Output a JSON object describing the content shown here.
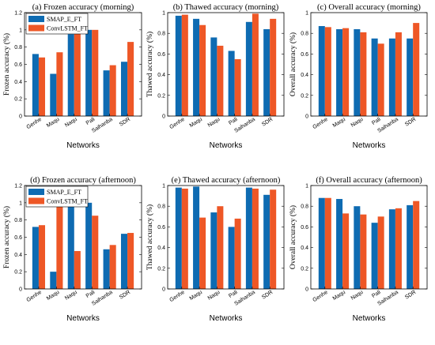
{
  "colors": {
    "blue": "#0e6bb2",
    "orange": "#ee5726"
  },
  "chart_data": [
    {
      "type": "bar",
      "title": "(a) Frozen accuracy (morning)",
      "xlabel": "Networks",
      "ylabel": "Frozen accuracy (%)",
      "ylim": [
        0,
        1.2
      ],
      "yticks": [
        "0",
        "0.2",
        "0.4",
        "0.6",
        "0.8",
        "1",
        "1.2"
      ],
      "legend": "top-left",
      "categories": [
        "Genhe",
        "Maqu",
        "Naqu",
        "Pali",
        "Saihanba",
        "SDR"
      ],
      "series": [
        {
          "name": "SMAP_E_FT",
          "color": "#0e6bb2",
          "values": [
            0.72,
            0.49,
            0.95,
            1.0,
            0.53,
            0.63
          ]
        },
        {
          "name": "ConvLSTM_FT",
          "color": "#ee5726",
          "values": [
            0.68,
            0.74,
            0.98,
            1.0,
            0.59,
            0.86
          ]
        }
      ]
    },
    {
      "type": "bar",
      "title": "(b) Thawed accuracy (morning)",
      "xlabel": "Networks",
      "ylabel": "Thawed accuracy (%)",
      "ylim": [
        0,
        1
      ],
      "yticks": [
        "0",
        "0.2",
        "0.4",
        "0.6",
        "0.8",
        "1"
      ],
      "categories": [
        "Genhe",
        "Maqu",
        "Naqu",
        "Pali",
        "Saihanba",
        "SDR"
      ],
      "series": [
        {
          "color": "#0e6bb2",
          "values": [
            0.97,
            0.94,
            0.76,
            0.63,
            0.91,
            0.84
          ]
        },
        {
          "color": "#ee5726",
          "values": [
            0.98,
            0.88,
            0.68,
            0.55,
            0.99,
            0.94
          ]
        }
      ]
    },
    {
      "type": "bar",
      "title": "(c) Overall accuracy (morning)",
      "xlabel": "Networks",
      "ylabel": "Overall accuracy (%)",
      "ylim": [
        0,
        1
      ],
      "yticks": [
        "0",
        "0.2",
        "0.4",
        "0.6",
        "0.8",
        "1"
      ],
      "categories": [
        "Genhe",
        "Maqu",
        "Naqu",
        "Pali",
        "Saihanba",
        "SDR"
      ],
      "series": [
        {
          "color": "#0e6bb2",
          "values": [
            0.87,
            0.84,
            0.84,
            0.75,
            0.75,
            0.75
          ]
        },
        {
          "color": "#ee5726",
          "values": [
            0.86,
            0.85,
            0.81,
            0.7,
            0.81,
            0.9
          ]
        }
      ]
    },
    {
      "type": "bar",
      "title": "(d) Frozen accuracy (afternoon)",
      "xlabel": "Networks",
      "ylabel": "Frozen accuracy (%)",
      "ylim": [
        0,
        1.2
      ],
      "yticks": [
        "0",
        "0.2",
        "0.4",
        "0.6",
        "0.8",
        "1",
        "1.2"
      ],
      "legend": "top-left",
      "categories": [
        "Genhe",
        "Maqu",
        "Naqu",
        "Pali",
        "Saihanba",
        "SDR"
      ],
      "series": [
        {
          "name": "SMAP_E_FT",
          "color": "#0e6bb2",
          "values": [
            0.72,
            0.2,
            0.99,
            1.0,
            0.46,
            0.64
          ]
        },
        {
          "name": "ConvLSTM_FT",
          "color": "#ee5726",
          "values": [
            0.74,
            0.98,
            0.44,
            0.85,
            0.51,
            0.65
          ]
        }
      ]
    },
    {
      "type": "bar",
      "title": "(e) Thawed accuracy (afternoon)",
      "xlabel": "Networks",
      "ylabel": "Thawed accuracy (%)",
      "ylim": [
        0,
        1
      ],
      "yticks": [
        "0",
        "0.2",
        "0.4",
        "0.6",
        "0.8",
        "1"
      ],
      "categories": [
        "Genhe",
        "Maqu",
        "Naqu",
        "Pali",
        "Saihanba",
        "SDR"
      ],
      "series": [
        {
          "color": "#0e6bb2",
          "values": [
            0.98,
            0.99,
            0.74,
            0.6,
            0.98,
            0.91
          ]
        },
        {
          "color": "#ee5726",
          "values": [
            0.97,
            0.69,
            0.8,
            0.68,
            0.97,
            0.96
          ]
        }
      ]
    },
    {
      "type": "bar",
      "title": "(f) Overall accuracy (afternoon)",
      "xlabel": "Networks",
      "ylabel": "Overall accuracy (%)",
      "ylim": [
        0,
        1
      ],
      "yticks": [
        "0",
        "0.2",
        "0.4",
        "0.6",
        "0.8",
        "1"
      ],
      "categories": [
        "Genhe",
        "Maqu",
        "Naqu",
        "Pali",
        "Saihanba",
        "SDR"
      ],
      "series": [
        {
          "color": "#0e6bb2",
          "values": [
            0.88,
            0.87,
            0.8,
            0.64,
            0.77,
            0.81
          ]
        },
        {
          "color": "#ee5726",
          "values": [
            0.88,
            0.73,
            0.72,
            0.7,
            0.78,
            0.85
          ]
        }
      ]
    }
  ]
}
